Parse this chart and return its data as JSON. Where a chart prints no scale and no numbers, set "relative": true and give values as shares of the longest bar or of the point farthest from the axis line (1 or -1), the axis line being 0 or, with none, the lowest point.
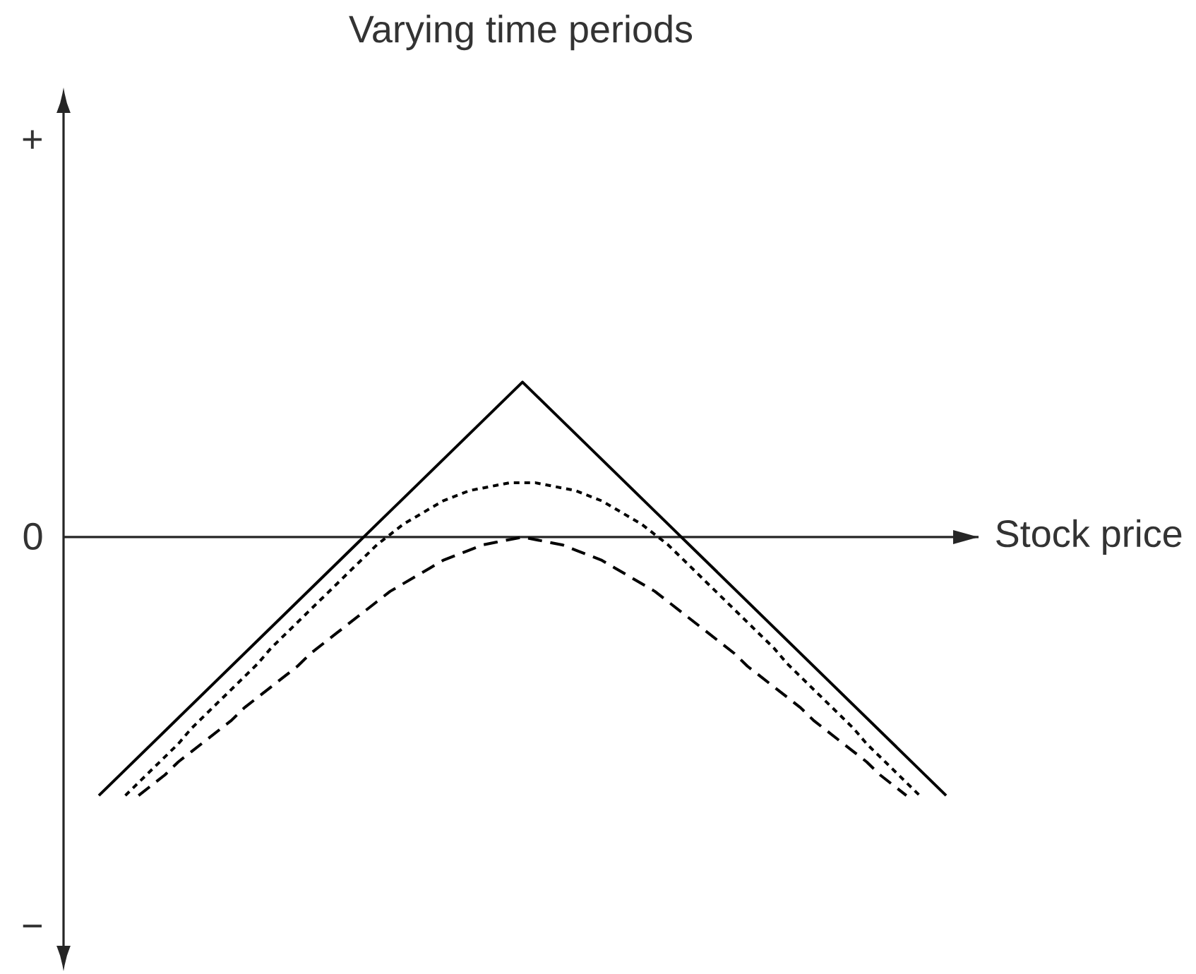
{
  "chart_data": {
    "type": "line",
    "title": "Varying time periods",
    "xlabel": "Stock price",
    "relative": true,
    "categories": [
      null,
      null,
      null,
      null,
      null,
      null,
      null,
      null,
      null,
      null,
      null,
      null,
      null,
      null,
      null,
      null,
      null,
      null,
      null,
      null,
      null,
      null,
      null,
      null,
      null,
      null,
      null,
      null,
      null,
      null,
      null,
      null,
      null,
      null,
      null,
      null,
      null,
      null,
      null,
      null,
      null,
      null,
      null,
      null,
      null,
      null,
      null,
      null,
      null,
      null,
      null,
      null,
      null,
      null,
      null,
      null,
      null,
      null,
      null,
      null,
      null,
      null,
      null,
      null,
      null
    ],
    "annotations": [
      "+",
      "0",
      "−"
    ],
    "series": [
      {
        "color": "#000000",
        "line_style": "solid",
        "values": [
          -1,
          -0.95,
          -0.9,
          -0.85,
          -0.8,
          -0.75,
          -0.7,
          -0.65,
          -0.6,
          -0.55,
          -0.5,
          -0.45,
          -0.4,
          -0.35,
          -0.3,
          -0.25,
          -0.2,
          -0.15,
          -0.1,
          -0.05,
          0,
          0.05,
          0.1,
          0.15,
          0.2,
          0.25,
          0.3,
          0.35,
          0.4,
          0.45,
          0.5,
          0.55,
          0.6,
          0.55,
          0.5,
          0.45,
          0.4,
          0.35,
          0.3,
          0.25,
          0.2,
          0.15,
          0.1,
          0.05,
          0,
          -0.05,
          -0.1,
          -0.15,
          -0.2,
          -0.25,
          -0.3,
          -0.35,
          -0.4,
          -0.45,
          -0.5,
          -0.55,
          -0.6,
          -0.65,
          -0.7,
          -0.75,
          -0.8,
          -0.85,
          -0.9,
          -0.95,
          -1
        ]
      },
      {
        "color": "#000000",
        "line_style": "dotted",
        "values": [
          null,
          null,
          -1,
          -0.95,
          -0.9,
          -0.85,
          -0.8,
          -0.74,
          -0.69,
          -0.64,
          -0.59,
          -0.54,
          -0.49,
          -0.43,
          -0.38,
          -0.33,
          -0.28,
          -0.23,
          -0.18,
          -0.13,
          -0.08,
          -0.03,
          0.01,
          0.05,
          0.08,
          0.11,
          0.14,
          0.16,
          0.18,
          0.19,
          0.2,
          0.21,
          0.21,
          0.21,
          0.2,
          0.19,
          0.18,
          0.16,
          0.14,
          0.11,
          0.08,
          0.05,
          0.01,
          -0.03,
          -0.08,
          -0.13,
          -0.18,
          -0.23,
          -0.28,
          -0.33,
          -0.38,
          -0.43,
          -0.49,
          -0.54,
          -0.59,
          -0.64,
          -0.69,
          -0.74,
          -0.8,
          -0.85,
          -0.9,
          -0.95,
          -1,
          null,
          null
        ]
      },
      {
        "color": "#000000",
        "line_style": "dashed",
        "values": [
          null,
          null,
          null,
          -1,
          -0.96,
          -0.92,
          -0.87,
          -0.83,
          -0.79,
          -0.75,
          -0.71,
          -0.66,
          -0.62,
          -0.58,
          -0.54,
          -0.5,
          -0.45,
          -0.41,
          -0.37,
          -0.33,
          -0.29,
          -0.25,
          -0.21,
          -0.18,
          -0.15,
          -0.12,
          -0.09,
          -0.07,
          -0.05,
          -0.03,
          -0.02,
          -0.01,
          0,
          -0.01,
          -0.02,
          -0.03,
          -0.05,
          -0.07,
          -0.09,
          -0.12,
          -0.15,
          -0.18,
          -0.21,
          -0.25,
          -0.29,
          -0.33,
          -0.37,
          -0.41,
          -0.45,
          -0.5,
          -0.54,
          -0.58,
          -0.62,
          -0.66,
          -0.71,
          -0.75,
          -0.79,
          -0.83,
          -0.87,
          -0.92,
          -0.96,
          -1,
          null,
          null,
          null
        ]
      }
    ]
  }
}
